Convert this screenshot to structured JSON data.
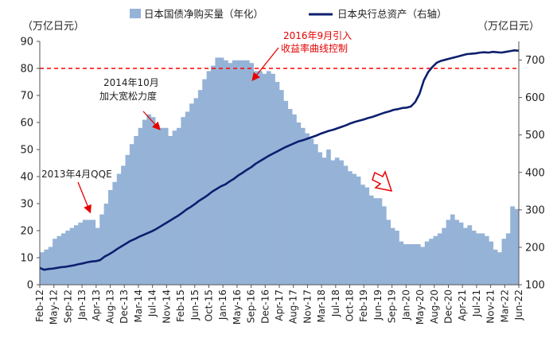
{
  "chart_data": {
    "type": "bar+line",
    "title": "",
    "y_left_unit": "（万亿日元）",
    "y_right_unit": "（万亿日元）",
    "y_left_lim": [
      0,
      90
    ],
    "y_right_lim": [
      100,
      750
    ],
    "y_left_ticks": [
      0,
      10,
      20,
      30,
      40,
      50,
      60,
      70,
      80,
      90
    ],
    "y_right_ticks": [
      100,
      200,
      300,
      400,
      500,
      600,
      700
    ],
    "x_ticks": [
      "Feb-12",
      "May-12",
      "Sep-12",
      "Jan-13",
      "Apr-13",
      "Aug-13",
      "Dec-13",
      "Mar-14",
      "Jul-14",
      "Nov-14",
      "Feb-15",
      "Jun-15",
      "Oct-15",
      "Jan-16",
      "May-16",
      "Sep-16",
      "Dec-16",
      "Apr-17",
      "Aug-17",
      "Nov-17",
      "Mar-18",
      "Jul-18",
      "Oct-18",
      "Feb-19",
      "Jun-19",
      "Sep-19",
      "Jan-20",
      "May-20",
      "Aug-20",
      "Dec-20",
      "Apr-21",
      "Jul-21",
      "Nov-21",
      "Mar-22",
      "Jun-22"
    ],
    "grid": false,
    "legend_position": "top",
    "series": [
      {
        "name": "日本国债净购买量（年化）",
        "type": "bar",
        "axis": "left",
        "color": "#95B3D7",
        "values": [
          12,
          13,
          14,
          17,
          18,
          19,
          20,
          21,
          22,
          23,
          24,
          24,
          24,
          21,
          26,
          30,
          35,
          38,
          41,
          44,
          48,
          52,
          55,
          58,
          61,
          63,
          62,
          59,
          58,
          58,
          55,
          57,
          58,
          62,
          64,
          67,
          69,
          72,
          76,
          79,
          81,
          84,
          84,
          83,
          82,
          83,
          83,
          83,
          83,
          82,
          79,
          79,
          78,
          79,
          78,
          75,
          72,
          68,
          65,
          63,
          60,
          58,
          56,
          54,
          52,
          49,
          47,
          50,
          46,
          47,
          46,
          44,
          42,
          41,
          40,
          37,
          36,
          33,
          32,
          32,
          29,
          24,
          21,
          20,
          16,
          15,
          15,
          15,
          15,
          14,
          16,
          17,
          18,
          19,
          21,
          24,
          26,
          24,
          23,
          21,
          22,
          20,
          19,
          19,
          18,
          16,
          13,
          12,
          17,
          19,
          29,
          28
        ]
      },
      {
        "name": "日本央行总资产（右轴）",
        "type": "line",
        "axis": "right",
        "color": "#0D1F6E",
        "values": [
          145,
          140,
          142,
          143,
          145,
          147,
          148,
          150,
          152,
          155,
          157,
          160,
          162,
          163,
          166,
          175,
          181,
          188,
          196,
          203,
          210,
          217,
          222,
          228,
          233,
          238,
          243,
          249,
          256,
          263,
          270,
          277,
          284,
          292,
          301,
          308,
          316,
          325,
          332,
          340,
          349,
          356,
          363,
          368,
          376,
          383,
          392,
          399,
          407,
          414,
          423,
          430,
          437,
          444,
          450,
          456,
          462,
          468,
          473,
          478,
          483,
          486,
          490,
          494,
          498,
          503,
          507,
          511,
          514,
          518,
          522,
          526,
          531,
          535,
          538,
          541,
          545,
          548,
          552,
          556,
          560,
          563,
          567,
          569,
          572,
          573,
          576,
          588,
          610,
          646,
          668,
          682,
          693,
          698,
          701,
          704,
          707,
          710,
          713,
          716,
          717,
          718,
          720,
          721,
          720,
          722,
          721,
          720,
          722,
          724,
          726,
          725
        ]
      }
    ],
    "annotations": [
      {
        "text": "2013年4月QQE"
      },
      {
        "text": "2014年10月"
      },
      {
        "text": "加大宽松力度"
      },
      {
        "text": "2016年9月引入"
      },
      {
        "text": "收益率曲线控制"
      }
    ],
    "reference_line": {
      "axis": "left",
      "value": 80,
      "style": "dashed",
      "color": "#FF0000"
    }
  }
}
